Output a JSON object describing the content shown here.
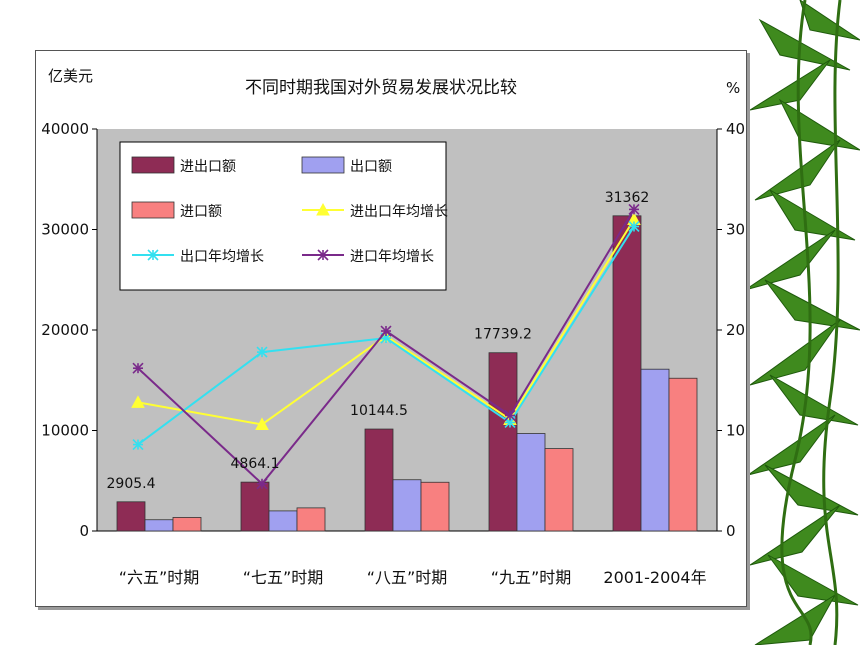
{
  "chart_data": {
    "type": "bar",
    "title": "不同时期我国对外贸易发展状况比较",
    "ylabel": "亿美元",
    "y2label": "%",
    "ylim": [
      0,
      40000
    ],
    "y2lim": [
      0,
      40
    ],
    "yticks": [
      "0",
      "10000",
      "20000",
      "30000",
      "40000"
    ],
    "y2ticks": [
      "0",
      "10",
      "20",
      "30",
      "40"
    ],
    "categories": [
      "“六五”时期",
      "“七五”时期",
      "“八五”时期",
      "“九五”时期",
      "2001-2004年"
    ],
    "bar_series": [
      {
        "name": "进出口额",
        "color": "#8e2c55",
        "values": [
          2905.4,
          4864.1,
          10144.5,
          17739.2,
          31362
        ]
      },
      {
        "name": "出口额",
        "color": "#a0a0f0",
        "values": [
          1120,
          2000,
          5100,
          9700,
          16100
        ]
      },
      {
        "name": "进口额",
        "color": "#f88080",
        "values": [
          1350,
          2300,
          4850,
          8200,
          15200
        ]
      }
    ],
    "line_series": [
      {
        "name": "进出口年均增长",
        "color": "#ffff33",
        "marker": "triangle",
        "values": [
          12.8,
          10.6,
          19.4,
          11.1,
          31.0
        ]
      },
      {
        "name": "出口年均增长",
        "color": "#33e0f0",
        "marker": "asterisk",
        "values": [
          8.6,
          17.8,
          19.2,
          10.8,
          30.3
        ]
      },
      {
        "name": "进口年均增长",
        "color": "#7a2a8a",
        "marker": "asterisk",
        "values": [
          16.2,
          4.7,
          19.9,
          11.5,
          32.0
        ]
      }
    ],
    "data_labels": [
      "2905.4",
      "4864.1",
      "10144.5",
      "17739.2",
      "31362"
    ],
    "legend_position": "top-left",
    "grid": false,
    "plot_background": "#c0c0c0"
  }
}
